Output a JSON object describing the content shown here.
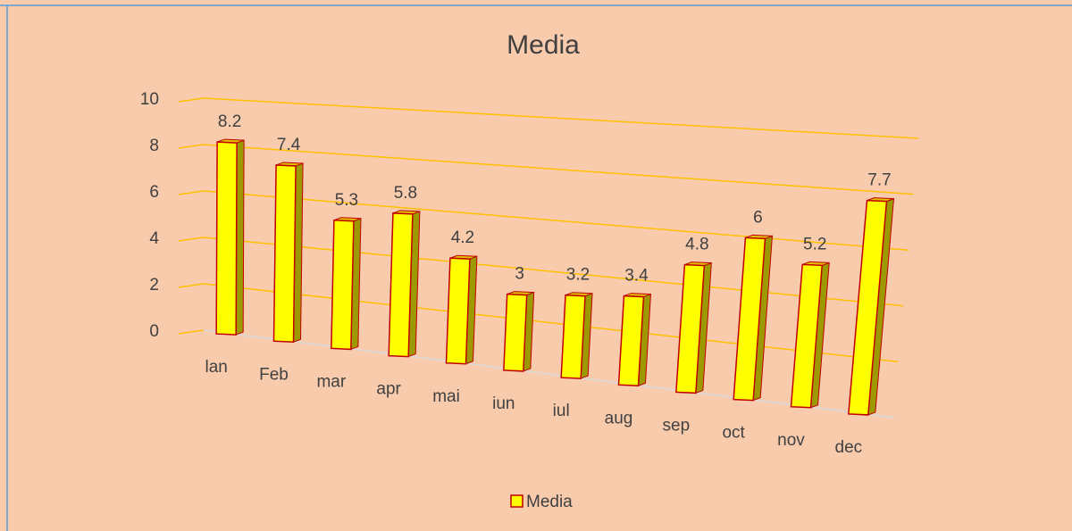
{
  "chart_data": {
    "type": "bar3d",
    "title": "Media",
    "categories": [
      "lan",
      "Feb",
      "mar",
      "apr",
      "mai",
      "iun",
      "iul",
      "aug",
      "sep",
      "oct",
      "nov",
      "dec"
    ],
    "series": [
      {
        "name": "Media",
        "color": "#ffff00",
        "values": [
          8.2,
          7.4,
          5.3,
          5.8,
          4.2,
          3,
          3.2,
          3.4,
          4.8,
          6,
          5.2,
          7.7
        ]
      }
    ],
    "ylim": [
      0,
      10
    ],
    "yticks": [
      0,
      2,
      4,
      6,
      8,
      10
    ],
    "grid": true,
    "legend": "bottom"
  }
}
